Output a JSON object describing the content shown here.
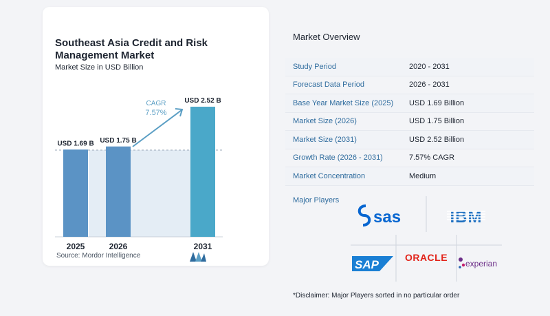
{
  "chart_data": {
    "type": "bar",
    "title": "Southeast Asia Credit and Risk Management Market",
    "subtitle": "Market Size in USD Billion",
    "categories": [
      "2025",
      "2026",
      "2031"
    ],
    "values": [
      1.69,
      1.75,
      2.52
    ],
    "value_labels": [
      "USD 1.69 B",
      "USD 1.75 B",
      "USD 2.52 B"
    ],
    "cagr_label": "CAGR",
    "cagr_value": "7.57%",
    "ylim": [
      0,
      2.52
    ],
    "bar_color": "#5b93c5",
    "bar_color_last": "#4aa8c9",
    "source": "Source:  Mordor Intelligence"
  },
  "overview": {
    "title": "Market Overview",
    "rows": [
      {
        "label": "Study Period",
        "value": "2020 - 2031"
      },
      {
        "label": "Forecast Data Period",
        "value": "2026 - 2031"
      },
      {
        "label": "Base Year Market Size (2025)",
        "value": "USD 1.69 Billion"
      },
      {
        "label": "Market Size (2026)",
        "value": "USD 1.75 Billion"
      },
      {
        "label": "Market Size (2031)",
        "value": "USD 2.52 Billion"
      },
      {
        "label": "Growth Rate (2026 - 2031)",
        "value": "7.57% CAGR"
      },
      {
        "label": "Market Concentration",
        "value": "Medium"
      }
    ]
  },
  "players": {
    "title": "Major Players",
    "logos": [
      "sas",
      "IBM",
      "SAP",
      "ORACLE",
      "experian"
    ]
  },
  "disclaimer": "*Disclaimer: Major Players sorted in no particular order",
  "colors": {
    "accent_text": "#2f6c9e",
    "cagr_text": "#5a9ec4",
    "oracle_red": "#e2231a",
    "sas_blue": "#0766d1",
    "ibm_blue": "#1f70c1",
    "sap_blue": "#1a7fd4",
    "experian_purple": "#6b2d87"
  }
}
